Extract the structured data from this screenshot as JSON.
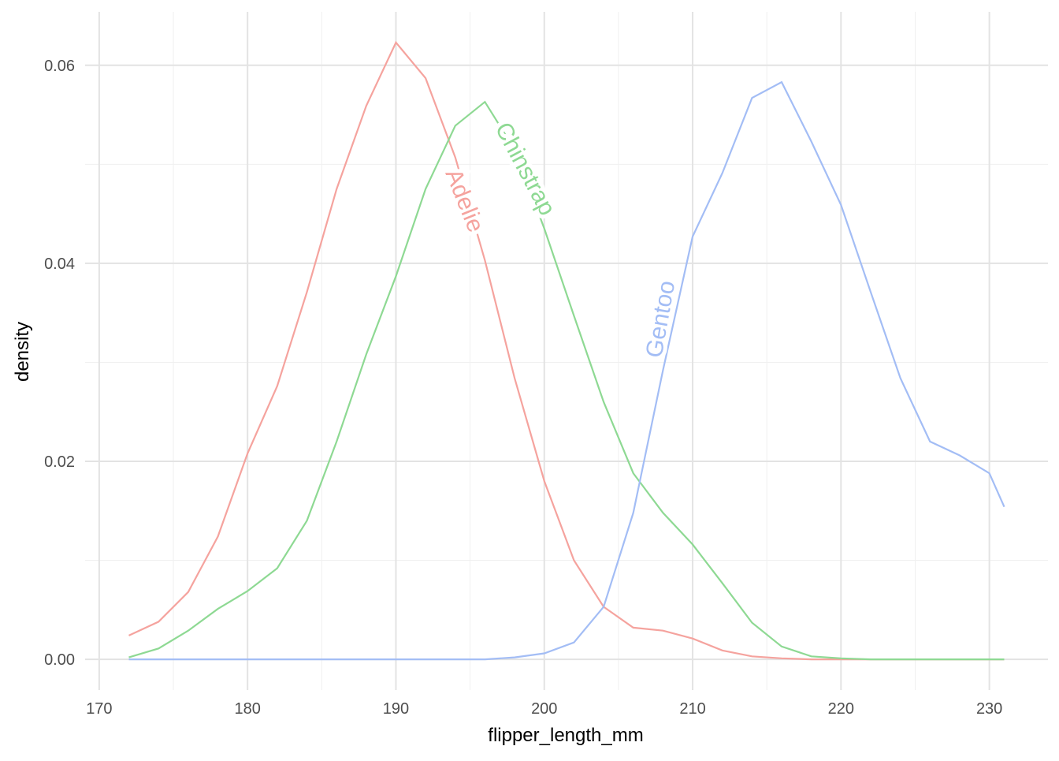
{
  "chart_data": {
    "type": "line",
    "x_label": "flipper_length_mm",
    "y_label": "density",
    "x": [
      172,
      174,
      176,
      178,
      180,
      182,
      184,
      186,
      188,
      190,
      192,
      194,
      196,
      198,
      200,
      202,
      204,
      206,
      208,
      210,
      212,
      214,
      216,
      218,
      220,
      222,
      224,
      226,
      228,
      230,
      231
    ],
    "series": [
      {
        "name": "Adelie",
        "color": "#F5A39E",
        "values": [
          0.0024,
          0.0038,
          0.0068,
          0.0124,
          0.0208,
          0.0276,
          0.0371,
          0.0475,
          0.0559,
          0.0623,
          0.0587,
          0.0507,
          0.0403,
          0.0284,
          0.018,
          0.01,
          0.0053,
          0.0032,
          0.0029,
          0.0021,
          0.0009,
          0.0003,
          0.0001,
          0,
          0,
          0,
          0,
          0,
          0,
          0,
          0
        ]
      },
      {
        "name": "Chinstrap",
        "color": "#8ED993",
        "values": [
          0.0002,
          0.0011,
          0.0029,
          0.0051,
          0.0069,
          0.0092,
          0.014,
          0.022,
          0.0308,
          0.0387,
          0.0475,
          0.0539,
          0.0563,
          0.0515,
          0.0435,
          0.0347,
          0.026,
          0.0188,
          0.0148,
          0.0116,
          0.0077,
          0.0037,
          0.0013,
          0.0003,
          0.0001,
          0,
          0,
          0,
          0,
          0,
          0
        ]
      },
      {
        "name": "Gentoo",
        "color": "#A3BDF5",
        "values": [
          0,
          0,
          0,
          0,
          0,
          0,
          0,
          0,
          0,
          0,
          0,
          0,
          0,
          0.0002,
          0.0006,
          0.0017,
          0.0053,
          0.0148,
          0.0292,
          0.0427,
          0.0491,
          0.0567,
          0.0583,
          0.0523,
          0.0459,
          0.0371,
          0.0284,
          0.022,
          0.0206,
          0.0188,
          0.0154
        ]
      }
    ],
    "xlim": [
      169.05,
      233.95
    ],
    "ylim": [
      -0.0031,
      0.0654
    ],
    "xticks": [
      170,
      180,
      190,
      200,
      210,
      220,
      230
    ],
    "yticks": [
      {
        "value": 0,
        "label": "0.00"
      },
      {
        "value": 0.02,
        "label": "0.02"
      },
      {
        "value": 0.04,
        "label": "0.04"
      },
      {
        "value": 0.06,
        "label": "0.06"
      }
    ],
    "xminorticks": [
      175,
      185,
      195,
      205,
      215,
      225
    ],
    "yminorticks": [
      0.01,
      0.03,
      0.05
    ],
    "grid": true
  }
}
